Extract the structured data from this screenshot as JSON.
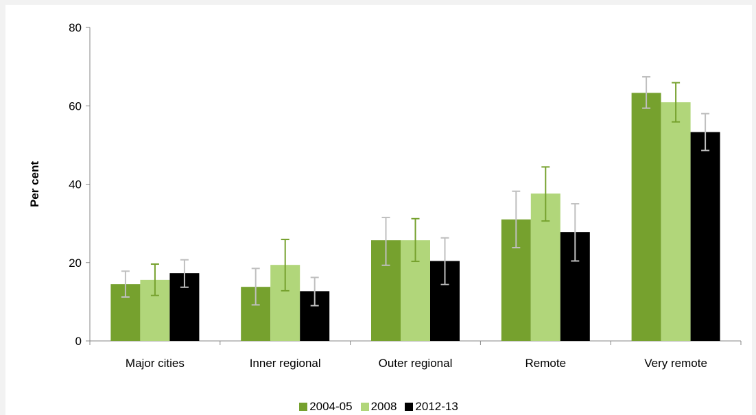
{
  "chart_data": {
    "type": "bar",
    "title": "",
    "xlabel": "",
    "ylabel": "Per cent",
    "ylim": [
      0,
      80
    ],
    "yticks": [
      0,
      20,
      40,
      60,
      80
    ],
    "grid": false,
    "legend_position": "bottom",
    "categories": [
      "Major cities",
      "Inner regional",
      "Outer regional",
      "Remote",
      "Very remote"
    ],
    "series": [
      {
        "name": "2004-05",
        "color": "#76a12e",
        "error_bar_color": "#bfbfbf",
        "values": [
          14.5,
          13.8,
          25.7,
          31.0,
          63.3
        ],
        "error_low": [
          11.2,
          9.2,
          19.3,
          23.8,
          59.4
        ],
        "error_high": [
          17.8,
          18.5,
          31.5,
          38.2,
          67.4
        ]
      },
      {
        "name": "2008",
        "color": "#b1d67a",
        "error_bar_color": "#76a12e",
        "values": [
          15.6,
          19.4,
          25.7,
          37.6,
          60.9
        ],
        "error_low": [
          11.6,
          12.8,
          20.3,
          30.6,
          55.9
        ],
        "error_high": [
          19.6,
          25.9,
          31.2,
          44.4,
          65.9
        ]
      },
      {
        "name": "2012-13",
        "color": "#000000",
        "error_bar_color": "#bfbfbf",
        "values": [
          17.3,
          12.7,
          20.4,
          27.8,
          53.3
        ],
        "error_low": [
          13.7,
          9.0,
          14.4,
          20.4,
          48.6
        ],
        "error_high": [
          20.7,
          16.2,
          26.3,
          35.0,
          58.0
        ]
      }
    ]
  }
}
